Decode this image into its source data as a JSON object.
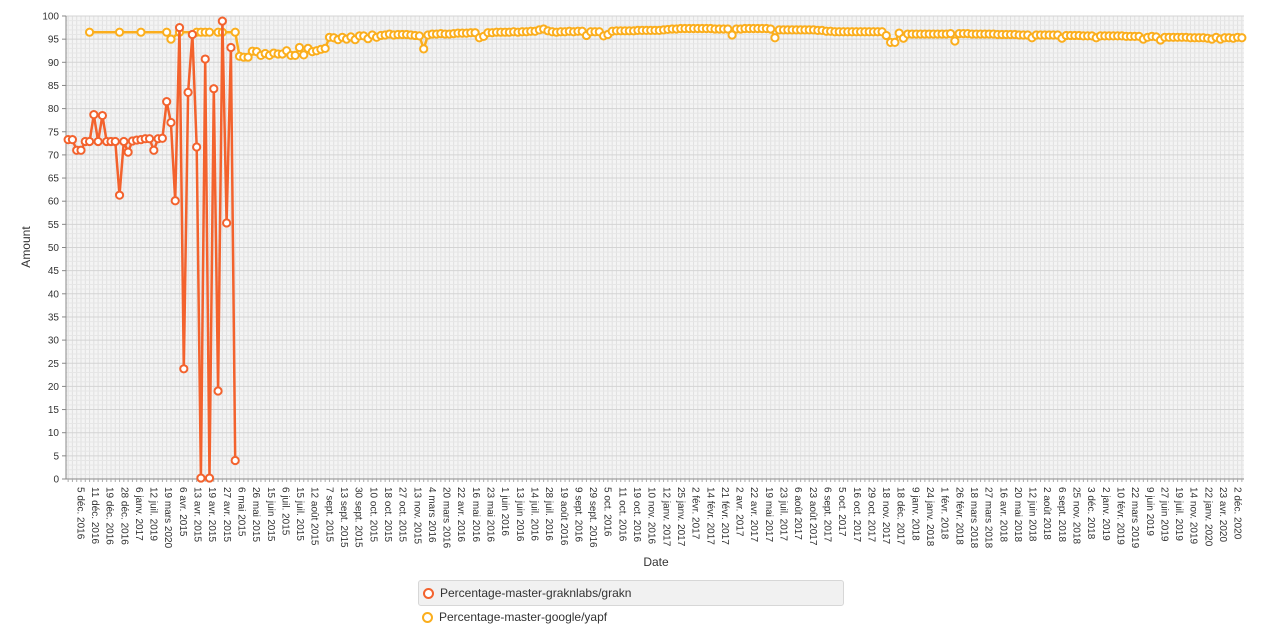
{
  "chart_data": {
    "type": "line",
    "xlabel": "Date",
    "ylabel": "Amount",
    "ylim": [
      0,
      100
    ],
    "y_ticks": [
      0,
      5,
      10,
      15,
      20,
      25,
      30,
      35,
      40,
      45,
      50,
      55,
      60,
      65,
      70,
      75,
      80,
      85,
      90,
      95,
      100
    ],
    "x_tick_labels": [
      "5 déc. 2016",
      "11 déc. 2016",
      "19 déc. 2016",
      "28 déc. 2016",
      "6 janv. 2017",
      "12 juil. 2019",
      "19 mars 2020",
      "6 avr. 2015",
      "13 avr. 2015",
      "19 avr. 2015",
      "27 avr. 2015",
      "6 mai 2015",
      "26 mai 2015",
      "15 juin 2015",
      "6 juil. 2015",
      "15 juil. 2015",
      "12 août 2015",
      "7 sept. 2015",
      "13 sept. 2015",
      "30 sept. 2015",
      "10 oct. 2015",
      "18 oct. 2015",
      "27 oct. 2015",
      "13 nov. 2015",
      "4 mars 2016",
      "20 mars 2016",
      "22 avr. 2016",
      "16 mai 2016",
      "23 mai 2016",
      "1 juin 2016",
      "13 juin 2016",
      "14 juil. 2016",
      "28 juil. 2016",
      "19 août 2016",
      "9 sept. 2016",
      "29 sept. 2016",
      "5 oct. 2016",
      "11 oct. 2016",
      "19 oct. 2016",
      "10 nov. 2016",
      "12 janv. 2017",
      "25 janv. 2017",
      "2 févr. 2017",
      "14 févr. 2017",
      "21 févr. 2017",
      "2 avr. 2017",
      "22 avr. 2017",
      "19 mai 2017",
      "23 juil. 2017",
      "6 août 2017",
      "23 août 2017",
      "6 sept. 2017",
      "5 oct. 2017",
      "16 oct. 2017",
      "29 oct. 2017",
      "18 nov. 2017",
      "18 déc. 2017",
      "9 janv. 2018",
      "24 janv. 2018",
      "1 févr. 2018",
      "26 févr. 2018",
      "18 mars 2018",
      "27 mars 2018",
      "16 avr. 2018",
      "20 mai 2018",
      "12 juin 2018",
      "2 août 2018",
      "6 sept. 2018",
      "25 nov. 2018",
      "3 déc. 2018",
      "2 janv. 2019",
      "10 févr. 2019",
      "22 mars 2019",
      "9 juin 2019",
      "27 juin 2019",
      "19 juil. 2019",
      "14 nov. 2019",
      "22 janv. 2020",
      "23 avr. 2020",
      "2 déc. 2020"
    ],
    "x_count": 275,
    "series": [
      {
        "name": "Percentage-master-graknlabs/grakn",
        "color": "#f3622d",
        "points": [
          [
            0,
            73.3
          ],
          [
            1,
            73.3
          ],
          [
            2,
            71
          ],
          [
            3,
            71
          ],
          [
            4,
            72.9
          ],
          [
            5,
            72.9
          ],
          [
            6,
            78.7
          ],
          [
            7,
            72.9
          ],
          [
            8,
            78.5
          ],
          [
            9,
            72.9
          ],
          [
            10,
            72.9
          ],
          [
            11,
            72.9
          ],
          [
            12,
            61.3
          ],
          [
            13,
            72.9
          ],
          [
            14,
            70.6
          ],
          [
            15,
            73
          ],
          [
            16,
            73.2
          ],
          [
            17,
            73.3
          ],
          [
            18,
            73.5
          ],
          [
            19,
            73.5
          ],
          [
            20,
            71
          ],
          [
            21,
            73.5
          ],
          [
            22,
            73.6
          ],
          [
            23,
            81.5
          ],
          [
            24,
            77
          ],
          [
            25,
            60.1
          ],
          [
            26,
            97.5
          ],
          [
            27,
            23.8
          ],
          [
            28,
            83.5
          ],
          [
            29,
            96
          ],
          [
            30,
            71.7
          ],
          [
            31,
            0.2
          ],
          [
            32,
            90.7
          ],
          [
            33,
            0.2
          ],
          [
            34,
            84.3
          ],
          [
            35,
            19
          ],
          [
            36,
            98.9
          ],
          [
            37,
            55.3
          ],
          [
            38,
            93.2
          ],
          [
            39,
            4
          ]
        ]
      },
      {
        "name": "Percentage-master-google/yapf",
        "color": "#fbae1d",
        "points": [
          [
            5,
            96.5
          ],
          [
            12,
            96.5
          ],
          [
            17,
            96.5
          ],
          [
            23,
            96.5
          ],
          [
            24,
            95
          ],
          [
            26,
            96.5
          ],
          [
            30,
            96.5
          ],
          [
            31,
            96.5
          ],
          [
            32,
            96.5
          ],
          [
            33,
            96.5
          ],
          [
            35,
            96.5
          ],
          [
            36,
            96.5
          ],
          [
            39,
            96.5
          ],
          [
            40,
            91.3
          ],
          [
            41,
            91.1
          ],
          [
            42,
            91.1
          ],
          [
            43,
            92.4
          ],
          [
            44,
            92.3
          ],
          [
            45,
            91.5
          ],
          [
            46,
            91.9
          ],
          [
            47,
            91.5
          ],
          [
            48,
            92
          ],
          [
            49,
            91.8
          ],
          [
            50,
            91.8
          ],
          [
            51,
            92.5
          ],
          [
            52,
            91.5
          ],
          [
            53,
            91.5
          ],
          [
            54,
            93.2
          ],
          [
            55,
            91.6
          ],
          [
            56,
            93
          ],
          [
            57,
            92.3
          ],
          [
            58,
            92.5
          ],
          [
            59,
            92.8
          ],
          [
            60,
            93
          ],
          [
            61,
            95.4
          ],
          [
            62,
            95.3
          ],
          [
            63,
            94.9
          ],
          [
            64,
            95.4
          ],
          [
            65,
            95
          ],
          [
            66,
            95.5
          ],
          [
            67,
            94.9
          ],
          [
            68,
            95.7
          ],
          [
            69,
            95.7
          ],
          [
            70,
            95.1
          ],
          [
            71,
            95.9
          ],
          [
            72,
            95.4
          ],
          [
            73,
            95.8
          ],
          [
            74,
            95.9
          ],
          [
            75,
            96.1
          ],
          [
            76,
            95.9
          ],
          [
            77,
            96
          ],
          [
            78,
            96
          ],
          [
            79,
            96
          ],
          [
            80,
            95.9
          ],
          [
            81,
            95.8
          ],
          [
            82,
            95.7
          ],
          [
            83,
            92.9
          ],
          [
            84,
            95.9
          ],
          [
            85,
            96.1
          ],
          [
            86,
            96.1
          ],
          [
            87,
            96.2
          ],
          [
            88,
            96.1
          ],
          [
            89,
            96.1
          ],
          [
            90,
            96.2
          ],
          [
            91,
            96.3
          ],
          [
            92,
            96.3
          ],
          [
            93,
            96.3
          ],
          [
            94,
            96.4
          ],
          [
            95,
            96.4
          ],
          [
            96,
            95.3
          ],
          [
            97,
            95.6
          ],
          [
            98,
            96.4
          ],
          [
            99,
            96.4
          ],
          [
            100,
            96.5
          ],
          [
            101,
            96.5
          ],
          [
            102,
            96.5
          ],
          [
            103,
            96.5
          ],
          [
            104,
            96.6
          ],
          [
            105,
            96.5
          ],
          [
            106,
            96.6
          ],
          [
            107,
            96.6
          ],
          [
            108,
            96.7
          ],
          [
            109,
            96.7
          ],
          [
            110,
            97
          ],
          [
            111,
            97.2
          ],
          [
            112,
            96.8
          ],
          [
            113,
            96.6
          ],
          [
            114,
            96.5
          ],
          [
            115,
            96.6
          ],
          [
            116,
            96.6
          ],
          [
            117,
            96.7
          ],
          [
            118,
            96.6
          ],
          [
            119,
            96.7
          ],
          [
            120,
            96.7
          ],
          [
            121,
            95.8
          ],
          [
            122,
            96.6
          ],
          [
            123,
            96.6
          ],
          [
            124,
            96.6
          ],
          [
            125,
            95.7
          ],
          [
            126,
            96
          ],
          [
            127,
            96.7
          ],
          [
            128,
            96.8
          ],
          [
            129,
            96.8
          ],
          [
            130,
            96.8
          ],
          [
            131,
            96.8
          ],
          [
            132,
            96.8
          ],
          [
            133,
            96.9
          ],
          [
            134,
            96.9
          ],
          [
            135,
            96.9
          ],
          [
            136,
            96.9
          ],
          [
            137,
            96.9
          ],
          [
            138,
            96.9
          ],
          [
            139,
            97
          ],
          [
            140,
            97.1
          ],
          [
            141,
            97.2
          ],
          [
            142,
            97.2
          ],
          [
            143,
            97.3
          ],
          [
            144,
            97.3
          ],
          [
            145,
            97.3
          ],
          [
            146,
            97.3
          ],
          [
            147,
            97.3
          ],
          [
            148,
            97.3
          ],
          [
            149,
            97.3
          ],
          [
            150,
            97.3
          ],
          [
            151,
            97.2
          ],
          [
            152,
            97.2
          ],
          [
            153,
            97.2
          ],
          [
            154,
            97.2
          ],
          [
            155,
            95.9
          ],
          [
            156,
            97.2
          ],
          [
            157,
            97.2
          ],
          [
            158,
            97.3
          ],
          [
            159,
            97.3
          ],
          [
            160,
            97.3
          ],
          [
            161,
            97.3
          ],
          [
            162,
            97.3
          ],
          [
            163,
            97.3
          ],
          [
            164,
            97.2
          ],
          [
            165,
            95.3
          ],
          [
            166,
            97
          ],
          [
            167,
            97
          ],
          [
            168,
            97
          ],
          [
            169,
            97
          ],
          [
            170,
            97
          ],
          [
            171,
            97
          ],
          [
            172,
            97
          ],
          [
            173,
            97
          ],
          [
            174,
            97
          ],
          [
            175,
            96.9
          ],
          [
            176,
            96.9
          ],
          [
            177,
            96.7
          ],
          [
            178,
            96.7
          ],
          [
            179,
            96.6
          ],
          [
            180,
            96.6
          ],
          [
            181,
            96.6
          ],
          [
            182,
            96.6
          ],
          [
            183,
            96.6
          ],
          [
            184,
            96.6
          ],
          [
            185,
            96.6
          ],
          [
            186,
            96.6
          ],
          [
            187,
            96.6
          ],
          [
            188,
            96.6
          ],
          [
            189,
            96.6
          ],
          [
            190,
            96.6
          ],
          [
            191,
            95.8
          ],
          [
            192,
            94.3
          ],
          [
            193,
            94.3
          ],
          [
            194,
            96.3
          ],
          [
            195,
            95.2
          ],
          [
            196,
            96.1
          ],
          [
            197,
            96.1
          ],
          [
            198,
            96.1
          ],
          [
            199,
            96.1
          ],
          [
            200,
            96.1
          ],
          [
            201,
            96.1
          ],
          [
            202,
            96.1
          ],
          [
            203,
            96.1
          ],
          [
            204,
            96.1
          ],
          [
            205,
            96.1
          ],
          [
            206,
            96.2
          ],
          [
            207,
            94.6
          ],
          [
            208,
            96.2
          ],
          [
            209,
            96.2
          ],
          [
            210,
            96.2
          ],
          [
            211,
            96.1
          ],
          [
            212,
            96.1
          ],
          [
            213,
            96.1
          ],
          [
            214,
            96.1
          ],
          [
            215,
            96.1
          ],
          [
            216,
            96.1
          ],
          [
            217,
            96
          ],
          [
            218,
            96
          ],
          [
            219,
            96
          ],
          [
            220,
            96
          ],
          [
            221,
            96
          ],
          [
            222,
            95.9
          ],
          [
            223,
            95.9
          ],
          [
            224,
            95.9
          ],
          [
            225,
            95.3
          ],
          [
            226,
            95.9
          ],
          [
            227,
            95.9
          ],
          [
            228,
            95.9
          ],
          [
            229,
            95.9
          ],
          [
            230,
            95.9
          ],
          [
            231,
            95.9
          ],
          [
            232,
            95.2
          ],
          [
            233,
            95.8
          ],
          [
            234,
            95.8
          ],
          [
            235,
            95.8
          ],
          [
            236,
            95.8
          ],
          [
            237,
            95.7
          ],
          [
            238,
            95.7
          ],
          [
            239,
            95.7
          ],
          [
            240,
            95.3
          ],
          [
            241,
            95.7
          ],
          [
            242,
            95.7
          ],
          [
            243,
            95.7
          ],
          [
            244,
            95.7
          ],
          [
            245,
            95.7
          ],
          [
            246,
            95.7
          ],
          [
            247,
            95.6
          ],
          [
            248,
            95.6
          ],
          [
            249,
            95.6
          ],
          [
            250,
            95.6
          ],
          [
            251,
            95
          ],
          [
            252,
            95.4
          ],
          [
            253,
            95.6
          ],
          [
            254,
            95.5
          ],
          [
            255,
            94.8
          ],
          [
            256,
            95.4
          ],
          [
            257,
            95.4
          ],
          [
            258,
            95.4
          ],
          [
            259,
            95.4
          ],
          [
            260,
            95.4
          ],
          [
            261,
            95.4
          ],
          [
            262,
            95.3
          ],
          [
            263,
            95.3
          ],
          [
            264,
            95.3
          ],
          [
            265,
            95.3
          ],
          [
            266,
            95.2
          ],
          [
            267,
            95
          ],
          [
            268,
            95.4
          ],
          [
            269,
            95
          ],
          [
            270,
            95.3
          ],
          [
            271,
            95.3
          ],
          [
            272,
            95.2
          ],
          [
            273,
            95.4
          ],
          [
            274,
            95.3
          ]
        ]
      }
    ],
    "legend_position": "bottom",
    "grid": true
  },
  "legend": {
    "items": [
      {
        "label": "Percentage-master-graknlabs/grakn",
        "color": "#f3622d"
      },
      {
        "label": "Percentage-master-google/yapf",
        "color": "#fbae1d"
      }
    ]
  }
}
